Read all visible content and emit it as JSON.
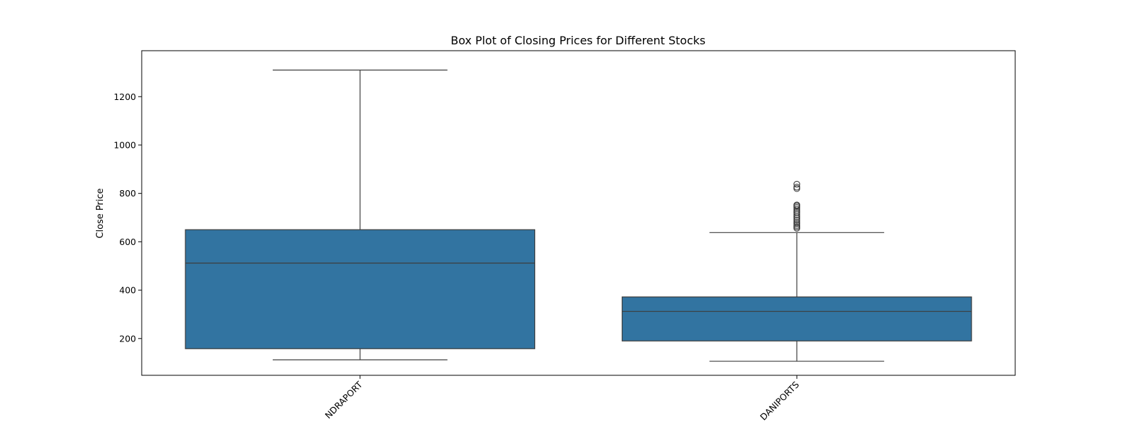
{
  "chart_data": {
    "type": "box",
    "title": "Box Plot of Closing Prices for Different Stocks",
    "xlabel": "",
    "ylabel": "Close Price",
    "ylim": [
      48,
      1390
    ],
    "y_ticks": [
      200,
      400,
      600,
      800,
      1000,
      1200
    ],
    "grid": false,
    "legend": "none",
    "box_color": "#3274a1",
    "line_color": "#3d3d3d",
    "categories": [
      "MUNDRAPORT",
      "ADANIPORTS"
    ],
    "x_tick_labels_visible": [
      "NDRAPORT",
      "DANIPORTS"
    ],
    "boxes": [
      {
        "category": "MUNDRAPORT",
        "whisker_low": 112,
        "q1": 158,
        "median": 512,
        "q3": 650,
        "whisker_high": 1310,
        "outliers": []
      },
      {
        "category": "ADANIPORTS",
        "whisker_low": 106,
        "q1": 190,
        "median": 312,
        "q3": 372,
        "whisker_high": 638,
        "outliers": [
          656,
          662,
          668,
          675,
          682,
          690,
          697,
          704,
          712,
          720,
          727,
          735,
          742,
          748,
          752,
          820,
          826,
          838
        ]
      }
    ]
  }
}
